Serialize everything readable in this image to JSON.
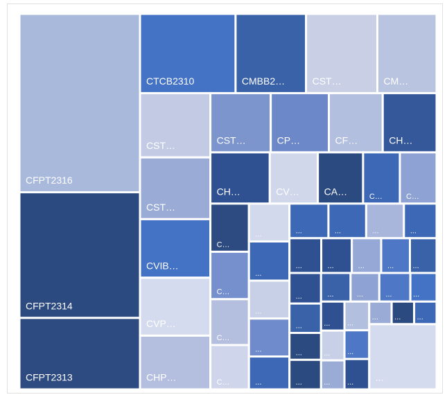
{
  "chart_data": {
    "type": "treemap",
    "categories": [
      "CFPT2316",
      "CFPT2314",
      "CFPT2313",
      "CTCB2310",
      "CMBB2…",
      "CST…",
      "CM…",
      "CST…",
      "CST…",
      "CVIB…",
      "CVP…",
      "CHP…",
      "CST…",
      "CP…",
      "CF…",
      "CH…",
      "CH…",
      "CV…",
      "CA…",
      "C…",
      "C…",
      "C…",
      "C…",
      "C…",
      "C…",
      "...",
      "...",
      "...",
      "...",
      "...",
      "...",
      "...",
      "...",
      "...",
      "...",
      "...",
      "...",
      "...",
      "...",
      "...",
      "...",
      "...",
      "...",
      "...",
      "...",
      "...",
      "...",
      "...",
      "...",
      "...",
      "...",
      "...",
      "...",
      "...",
      "...",
      "...",
      "..."
    ],
    "values": [
      44520,
      31360,
      17836,
      15680,
      11564,
      11700,
      9720,
      9360,
      9000,
      8526,
      8439,
      7830,
      7395,
      7125,
      6600,
      6600,
      6300,
      5100,
      4800,
      3900,
      3900,
      3843,
      3782,
      3660,
      3538,
      3172,
      3286,
      3180,
      3180,
      2756,
      2790,
      2700,
      2700,
      2340,
      2288,
      2200,
      2112,
      2068,
      1920,
      2000,
      1920,
      1760,
      1932,
      1748,
      1702,
      1840,
      1554,
      1406,
      1443,
      1406,
      1470,
      1470,
      1554,
      1050,
      1050,
      1050,
      9095
    ],
    "colors": [
      "#a9b9dc",
      "#2b4a7f",
      "#2d4b80",
      "#4472c4",
      "#3a62a8",
      "#c9d0e6",
      "#b9c4e0",
      "#c3cbe4",
      "#9aacd5",
      "#4472c4",
      "#d5dbee",
      "#b4bfdf",
      "#7d95cd",
      "#6c88c8",
      "#b3bfde",
      "#34589a",
      "#2f5192",
      "#d0d7eb",
      "#2b4a7f",
      "#3d68b6",
      "#8ea2d3",
      "#2d4b80",
      "#7690cd",
      "#b4bfdf",
      "#cfd6eb",
      "#d3d9ec",
      "#3d68b6",
      "#c8d0e7",
      "#6f8bcb",
      "#3d68b6",
      "#3d68b6",
      "#3d68b6",
      "#a9b6dc",
      "#3d68b6",
      "#2f5192",
      "#2f5192",
      "#96a8d6",
      "#4e77c6",
      "#3a62a8",
      "#2f5192",
      "#3a62a8",
      "#2b4a7f",
      "#2b4a7f",
      "#3a62a8",
      "#8ea2d3",
      "#4e77c6",
      "#4472c4",
      "#2f5192",
      "#c8d0e7",
      "#9aacd5",
      "#b3bfde",
      "#4e77c6",
      "#2f5192",
      "#9aacd5",
      "#2b4a7f",
      "#3d68b6",
      "#d5dbee"
    ]
  }
}
